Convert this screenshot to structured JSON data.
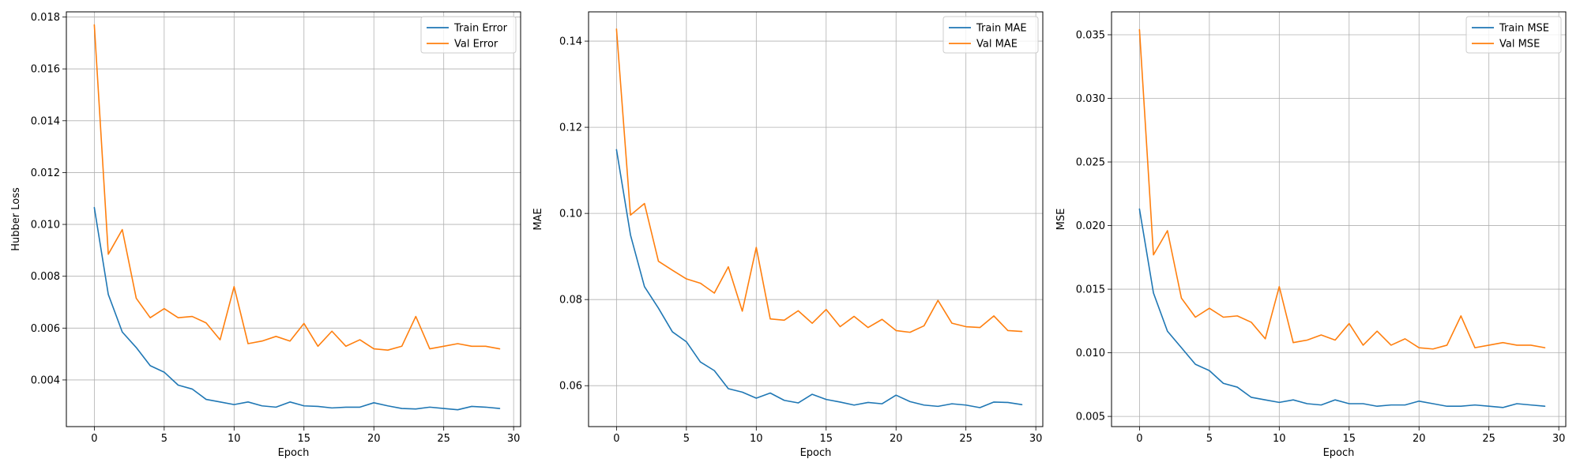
{
  "chart_data": [
    {
      "type": "line",
      "xlabel": "Epoch",
      "ylabel": "Hubber Loss",
      "xlim": [
        -2,
        30.5
      ],
      "ylim": [
        0.0022,
        0.0182
      ],
      "xticks": [
        0,
        5,
        10,
        15,
        20,
        25,
        30
      ],
      "xtick_labels": [
        "0",
        "5",
        "10",
        "15",
        "20",
        "25",
        "30"
      ],
      "yticks": [
        0.004,
        0.006,
        0.008,
        0.01,
        0.012,
        0.014,
        0.016,
        0.018
      ],
      "ytick_labels": [
        "0.004",
        "0.006",
        "0.008",
        "0.010",
        "0.012",
        "0.014",
        "0.016",
        "0.018"
      ],
      "grid": true,
      "legend_position": "top-right",
      "x": [
        0,
        1,
        2,
        3,
        4,
        5,
        6,
        7,
        8,
        9,
        10,
        11,
        12,
        13,
        14,
        15,
        16,
        17,
        18,
        19,
        20,
        21,
        22,
        23,
        24,
        25,
        26,
        27,
        28,
        29
      ],
      "series": [
        {
          "name": "Train Error",
          "color": "#1f77b4",
          "values": [
            0.01065,
            0.0073,
            0.00585,
            0.00525,
            0.00455,
            0.0043,
            0.0038,
            0.00365,
            0.00325,
            0.00315,
            0.00305,
            0.00315,
            0.003,
            0.00295,
            0.00315,
            0.003,
            0.00298,
            0.00292,
            0.00295,
            0.00295,
            0.00312,
            0.003,
            0.0029,
            0.00288,
            0.00295,
            0.0029,
            0.00285,
            0.00298,
            0.00295,
            0.0029
          ]
        },
        {
          "name": "Val Error",
          "color": "#ff7f0e",
          "values": [
            0.0177,
            0.00885,
            0.0098,
            0.00715,
            0.0064,
            0.00675,
            0.0064,
            0.00645,
            0.0062,
            0.00555,
            0.0076,
            0.0054,
            0.0055,
            0.00568,
            0.0055,
            0.00618,
            0.0053,
            0.00588,
            0.0053,
            0.00555,
            0.0052,
            0.00515,
            0.0053,
            0.00645,
            0.0052,
            0.0053,
            0.0054,
            0.0053,
            0.0053,
            0.0052
          ]
        }
      ]
    },
    {
      "type": "line",
      "xlabel": "Epoch",
      "ylabel": "MAE",
      "xlim": [
        -2,
        30.5
      ],
      "ylim": [
        0.0505,
        0.1468
      ],
      "xticks": [
        0,
        5,
        10,
        15,
        20,
        25,
        30
      ],
      "xtick_labels": [
        "0",
        "5",
        "10",
        "15",
        "20",
        "25",
        "30"
      ],
      "yticks": [
        0.06,
        0.08,
        0.1,
        0.12,
        0.14
      ],
      "ytick_labels": [
        "0.06",
        "0.08",
        "0.10",
        "0.12",
        "0.14"
      ],
      "grid": true,
      "legend_position": "top-right",
      "x": [
        0,
        1,
        2,
        3,
        4,
        5,
        6,
        7,
        8,
        9,
        10,
        11,
        12,
        13,
        14,
        15,
        16,
        17,
        18,
        19,
        20,
        21,
        22,
        23,
        24,
        25,
        26,
        27,
        28,
        29
      ],
      "series": [
        {
          "name": "Train MAE",
          "color": "#1f77b4",
          "values": [
            0.1148,
            0.095,
            0.083,
            0.078,
            0.0725,
            0.0702,
            0.0655,
            0.0635,
            0.0593,
            0.0585,
            0.0571,
            0.0583,
            0.0566,
            0.056,
            0.058,
            0.0568,
            0.0562,
            0.0555,
            0.0561,
            0.0558,
            0.0578,
            0.0563,
            0.0555,
            0.0552,
            0.0558,
            0.0555,
            0.0549,
            0.0562,
            0.0561,
            0.0556
          ]
        },
        {
          "name": "Val MAE",
          "color": "#ff7f0e",
          "values": [
            0.1428,
            0.0996,
            0.1023,
            0.0889,
            0.0868,
            0.0848,
            0.0838,
            0.0815,
            0.0876,
            0.0773,
            0.0921,
            0.0755,
            0.0752,
            0.0774,
            0.0745,
            0.0777,
            0.0737,
            0.0761,
            0.0735,
            0.0754,
            0.0728,
            0.0724,
            0.0739,
            0.0798,
            0.0745,
            0.0737,
            0.0735,
            0.0762,
            0.0728,
            0.0726
          ]
        }
      ]
    },
    {
      "type": "line",
      "xlabel": "Epoch",
      "ylabel": "MSE",
      "xlim": [
        -2,
        30.5
      ],
      "ylim": [
        0.0042,
        0.0368
      ],
      "xticks": [
        0,
        5,
        10,
        15,
        20,
        25,
        30
      ],
      "xtick_labels": [
        "0",
        "5",
        "10",
        "15",
        "20",
        "25",
        "30"
      ],
      "yticks": [
        0.005,
        0.01,
        0.015,
        0.02,
        0.025,
        0.03,
        0.035
      ],
      "ytick_labels": [
        "0.005",
        "0.010",
        "0.015",
        "0.020",
        "0.025",
        "0.030",
        "0.035"
      ],
      "grid": true,
      "legend_position": "top-right",
      "x": [
        0,
        1,
        2,
        3,
        4,
        5,
        6,
        7,
        8,
        9,
        10,
        11,
        12,
        13,
        14,
        15,
        16,
        17,
        18,
        19,
        20,
        21,
        22,
        23,
        24,
        25,
        26,
        27,
        28,
        29
      ],
      "series": [
        {
          "name": "Train MSE",
          "color": "#1f77b4",
          "values": [
            0.0213,
            0.0147,
            0.0117,
            0.0104,
            0.0091,
            0.0086,
            0.0076,
            0.0073,
            0.0065,
            0.0063,
            0.0061,
            0.0063,
            0.006,
            0.0059,
            0.0063,
            0.006,
            0.006,
            0.0058,
            0.0059,
            0.0059,
            0.0062,
            0.006,
            0.0058,
            0.0058,
            0.0059,
            0.0058,
            0.0057,
            0.006,
            0.0059,
            0.0058
          ]
        },
        {
          "name": "Val MSE",
          "color": "#ff7f0e",
          "values": [
            0.0354,
            0.0177,
            0.0196,
            0.0143,
            0.0128,
            0.0135,
            0.0128,
            0.0129,
            0.0124,
            0.0111,
            0.0152,
            0.0108,
            0.011,
            0.0114,
            0.011,
            0.0123,
            0.0106,
            0.0117,
            0.0106,
            0.0111,
            0.0104,
            0.0103,
            0.0106,
            0.0129,
            0.0104,
            0.0106,
            0.0108,
            0.0106,
            0.0106,
            0.0104
          ]
        }
      ]
    }
  ]
}
